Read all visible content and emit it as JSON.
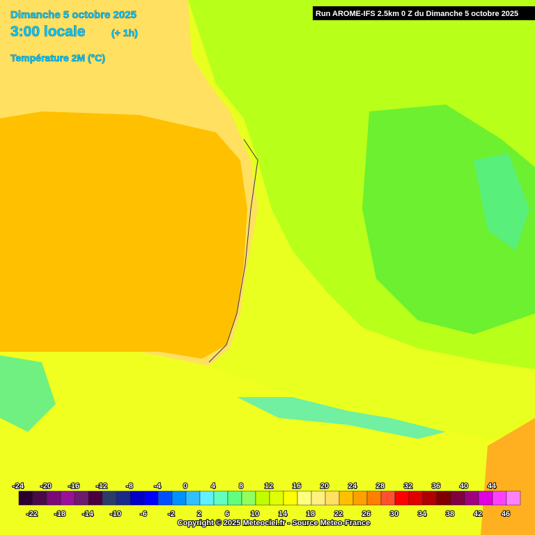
{
  "header": {
    "date": "Dimanche 5 octobre 2025",
    "time": "3:00 locale",
    "offset": "(+ 1h)",
    "parameter": "Température 2M (°C)"
  },
  "run": "Run AROME-IFS 2.5km 0 Z du Dimanche 5 octobre 2025",
  "legend": {
    "labels": [
      -24,
      -22,
      -20,
      -18,
      -16,
      -14,
      -12,
      -10,
      -8,
      -6,
      -4,
      -2,
      0,
      2,
      4,
      6,
      8,
      10,
      12,
      14,
      16,
      18,
      20,
      22,
      24,
      26,
      28,
      30,
      32,
      34,
      36,
      38,
      40,
      42,
      44,
      46
    ],
    "colors": [
      "#2e0030",
      "#4a0a4a",
      "#7a0a7a",
      "#9a109a",
      "#6e1a6e",
      "#4a0040",
      "#2a3c6a",
      "#1a2a8a",
      "#0000c8",
      "#0000ff",
      "#0050ff",
      "#0090ff",
      "#30c0ff",
      "#60f0ff",
      "#60ffc0",
      "#60ff80",
      "#90ff60",
      "#c0ff00",
      "#e0ff00",
      "#ffff00",
      "#ffff80",
      "#fff080",
      "#ffe060",
      "#ffc000",
      "#ffa000",
      "#ff8000",
      "#ff5030",
      "#ff0000",
      "#e00000",
      "#b00000",
      "#800000",
      "#800040",
      "#a00080",
      "#e000e0",
      "#ff40ff",
      "#ff80ff"
    ]
  },
  "copyright": "Copyright © 2025 Meteociel.fr - Source Meteo-France"
}
